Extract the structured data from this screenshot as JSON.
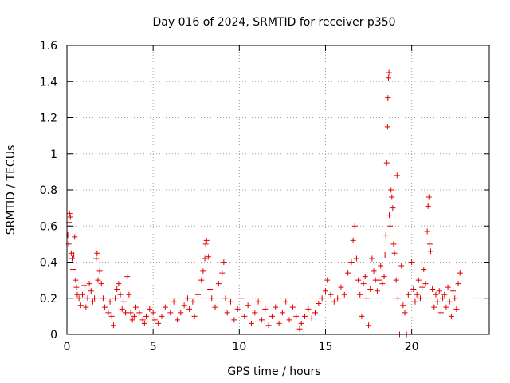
{
  "chart_data": {
    "type": "scatter",
    "title": "Day 016 of 2024, SRMTID for receiver p350",
    "xlabel": "GPS time / hours",
    "ylabel": "SRMTID / TECUs",
    "xlim": [
      0,
      24.5
    ],
    "ylim": [
      0,
      1.6
    ],
    "x_ticks": [
      0,
      5,
      10,
      15,
      20
    ],
    "y_ticks": [
      0,
      0.2,
      0.4,
      0.6,
      0.8,
      1,
      1.2,
      1.4,
      1.6
    ],
    "x_tick_labels": [
      "0",
      "5",
      "10",
      "15",
      "20"
    ],
    "y_tick_labels": [
      "0",
      "0.2",
      "0.4",
      "0.6",
      "0.8",
      "1",
      "1.2",
      "1.4",
      "1.6"
    ],
    "grid": true,
    "marker": "plus",
    "color": "#e00000",
    "series": [
      {
        "name": "SRMTID",
        "points": [
          [
            0.05,
            0.55
          ],
          [
            0.1,
            0.5
          ],
          [
            0.12,
            0.62
          ],
          [
            0.15,
            0.67
          ],
          [
            0.2,
            0.65
          ],
          [
            0.25,
            0.45
          ],
          [
            0.3,
            0.42
          ],
          [
            0.35,
            0.36
          ],
          [
            0.4,
            0.44
          ],
          [
            0.45,
            0.54
          ],
          [
            0.5,
            0.3
          ],
          [
            0.55,
            0.26
          ],
          [
            0.6,
            0.22
          ],
          [
            0.7,
            0.2
          ],
          [
            0.8,
            0.16
          ],
          [
            0.9,
            0.22
          ],
          [
            1.0,
            0.27
          ],
          [
            1.1,
            0.15
          ],
          [
            1.2,
            0.2
          ],
          [
            1.3,
            0.28
          ],
          [
            1.4,
            0.24
          ],
          [
            1.5,
            0.18
          ],
          [
            1.6,
            0.2
          ],
          [
            1.7,
            0.42
          ],
          [
            1.75,
            0.45
          ],
          [
            1.8,
            0.3
          ],
          [
            1.9,
            0.35
          ],
          [
            2.0,
            0.28
          ],
          [
            2.1,
            0.2
          ],
          [
            2.2,
            0.15
          ],
          [
            2.4,
            0.12
          ],
          [
            2.5,
            0.18
          ],
          [
            2.6,
            0.1
          ],
          [
            2.7,
            0.05
          ],
          [
            2.8,
            0.2
          ],
          [
            2.9,
            0.25
          ],
          [
            3.0,
            0.28
          ],
          [
            3.1,
            0.22
          ],
          [
            3.2,
            0.14
          ],
          [
            3.3,
            0.18
          ],
          [
            3.4,
            0.12
          ],
          [
            3.5,
            0.32
          ],
          [
            3.6,
            0.22
          ],
          [
            3.7,
            0.12
          ],
          [
            3.8,
            0.08
          ],
          [
            3.9,
            0.1
          ],
          [
            4.0,
            0.15
          ],
          [
            4.2,
            0.12
          ],
          [
            4.4,
            0.08
          ],
          [
            4.5,
            0.06
          ],
          [
            4.6,
            0.1
          ],
          [
            4.8,
            0.14
          ],
          [
            5.0,
            0.12
          ],
          [
            5.1,
            0.08
          ],
          [
            5.3,
            0.06
          ],
          [
            5.5,
            0.1
          ],
          [
            5.7,
            0.15
          ],
          [
            6.0,
            0.12
          ],
          [
            6.2,
            0.18
          ],
          [
            6.4,
            0.08
          ],
          [
            6.6,
            0.12
          ],
          [
            6.8,
            0.16
          ],
          [
            7.0,
            0.2
          ],
          [
            7.1,
            0.14
          ],
          [
            7.3,
            0.18
          ],
          [
            7.4,
            0.1
          ],
          [
            7.6,
            0.22
          ],
          [
            7.8,
            0.3
          ],
          [
            7.9,
            0.35
          ],
          [
            8.0,
            0.42
          ],
          [
            8.05,
            0.5
          ],
          [
            8.1,
            0.52
          ],
          [
            8.2,
            0.43
          ],
          [
            8.3,
            0.25
          ],
          [
            8.4,
            0.2
          ],
          [
            8.6,
            0.15
          ],
          [
            8.8,
            0.28
          ],
          [
            9.0,
            0.34
          ],
          [
            9.1,
            0.4
          ],
          [
            9.2,
            0.2
          ],
          [
            9.3,
            0.12
          ],
          [
            9.5,
            0.18
          ],
          [
            9.7,
            0.08
          ],
          [
            9.9,
            0.14
          ],
          [
            10.1,
            0.2
          ],
          [
            10.3,
            0.1
          ],
          [
            10.5,
            0.16
          ],
          [
            10.7,
            0.06
          ],
          [
            10.9,
            0.12
          ],
          [
            11.1,
            0.18
          ],
          [
            11.3,
            0.08
          ],
          [
            11.5,
            0.14
          ],
          [
            11.7,
            0.05
          ],
          [
            11.9,
            0.1
          ],
          [
            12.1,
            0.15
          ],
          [
            12.3,
            0.06
          ],
          [
            12.5,
            0.12
          ],
          [
            12.7,
            0.18
          ],
          [
            12.9,
            0.08
          ],
          [
            13.1,
            0.15
          ],
          [
            13.3,
            0.1
          ],
          [
            13.5,
            0.03
          ],
          [
            13.6,
            0.06
          ],
          [
            13.8,
            0.1
          ],
          [
            14.0,
            0.14
          ],
          [
            14.2,
            0.09
          ],
          [
            14.4,
            0.12
          ],
          [
            14.6,
            0.17
          ],
          [
            14.8,
            0.2
          ],
          [
            15.0,
            0.24
          ],
          [
            15.1,
            0.3
          ],
          [
            15.3,
            0.22
          ],
          [
            15.5,
            0.18
          ],
          [
            15.7,
            0.2
          ],
          [
            15.9,
            0.26
          ],
          [
            16.1,
            0.22
          ],
          [
            16.3,
            0.34
          ],
          [
            16.5,
            0.4
          ],
          [
            16.6,
            0.52
          ],
          [
            16.7,
            0.6
          ],
          [
            16.8,
            0.42
          ],
          [
            16.9,
            0.3
          ],
          [
            17.0,
            0.22
          ],
          [
            17.1,
            0.1
          ],
          [
            17.2,
            0.28
          ],
          [
            17.3,
            0.32
          ],
          [
            17.4,
            0.2
          ],
          [
            17.5,
            0.05
          ],
          [
            17.6,
            0.25
          ],
          [
            17.7,
            0.42
          ],
          [
            17.8,
            0.35
          ],
          [
            17.9,
            0.3
          ],
          [
            18.0,
            0.24
          ],
          [
            18.1,
            0.3
          ],
          [
            18.2,
            0.38
          ],
          [
            18.3,
            0.28
          ],
          [
            18.4,
            0.32
          ],
          [
            18.45,
            0.44
          ],
          [
            18.5,
            0.55
          ],
          [
            18.55,
            0.95
          ],
          [
            18.6,
            1.15
          ],
          [
            18.62,
            1.31
          ],
          [
            18.65,
            1.42
          ],
          [
            18.68,
            1.45
          ],
          [
            18.7,
            0.66
          ],
          [
            18.75,
            0.6
          ],
          [
            18.8,
            0.8
          ],
          [
            18.85,
            0.76
          ],
          [
            18.9,
            0.7
          ],
          [
            18.95,
            0.5
          ],
          [
            19.0,
            0.45
          ],
          [
            19.1,
            0.3
          ],
          [
            19.15,
            0.88
          ],
          [
            19.2,
            0.2
          ],
          [
            19.3,
            0.0
          ],
          [
            19.4,
            0.38
          ],
          [
            19.5,
            0.16
          ],
          [
            19.6,
            0.12
          ],
          [
            19.7,
            0.0
          ],
          [
            19.8,
            0.22
          ],
          [
            19.9,
            0.0
          ],
          [
            20.0,
            0.4
          ],
          [
            20.1,
            0.25
          ],
          [
            20.2,
            0.18
          ],
          [
            20.3,
            0.22
          ],
          [
            20.4,
            0.3
          ],
          [
            20.5,
            0.2
          ],
          [
            20.6,
            0.26
          ],
          [
            20.7,
            0.36
          ],
          [
            20.8,
            0.28
          ],
          [
            20.9,
            0.57
          ],
          [
            20.95,
            0.71
          ],
          [
            21.0,
            0.76
          ],
          [
            21.05,
            0.5
          ],
          [
            21.1,
            0.46
          ],
          [
            21.2,
            0.25
          ],
          [
            21.3,
            0.15
          ],
          [
            21.4,
            0.22
          ],
          [
            21.5,
            0.18
          ],
          [
            21.6,
            0.24
          ],
          [
            21.7,
            0.12
          ],
          [
            21.8,
            0.2
          ],
          [
            21.9,
            0.22
          ],
          [
            22.0,
            0.15
          ],
          [
            22.1,
            0.26
          ],
          [
            22.2,
            0.18
          ],
          [
            22.3,
            0.1
          ],
          [
            22.4,
            0.24
          ],
          [
            22.5,
            0.2
          ],
          [
            22.6,
            0.14
          ],
          [
            22.7,
            0.28
          ],
          [
            22.8,
            0.34
          ]
        ]
      }
    ]
  }
}
